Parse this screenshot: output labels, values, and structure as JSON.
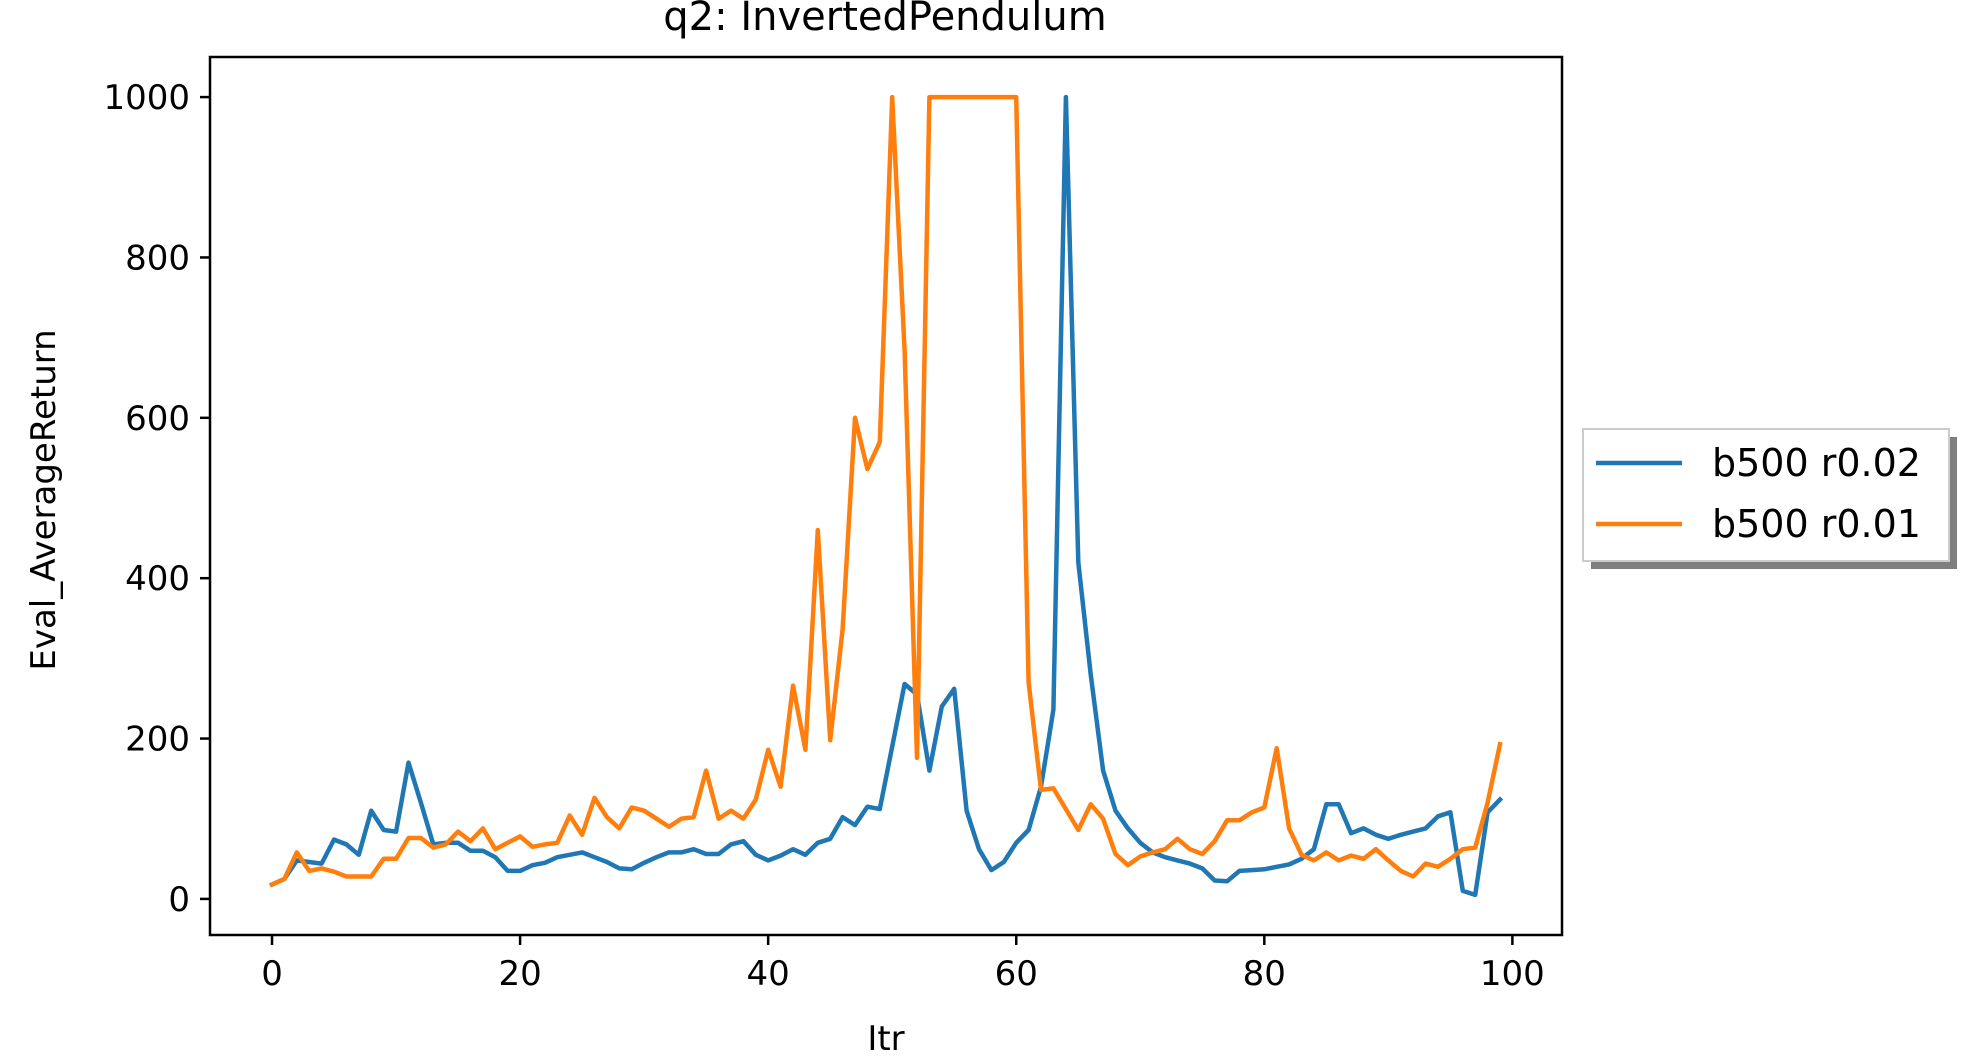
{
  "chart_data": {
    "type": "line",
    "title": "q2: InvertedPendulum",
    "xlabel": "Itr",
    "ylabel": "Eval_AverageReturn",
    "xlim": [
      -5,
      104
    ],
    "ylim": [
      -45,
      1050
    ],
    "xticks": [
      0,
      20,
      40,
      60,
      80,
      100
    ],
    "yticks": [
      0,
      200,
      400,
      600,
      800,
      1000
    ],
    "grid": false,
    "legend_position": "outside right",
    "x": [
      0,
      1,
      2,
      3,
      4,
      5,
      6,
      7,
      8,
      9,
      10,
      11,
      12,
      13,
      14,
      15,
      16,
      17,
      18,
      19,
      20,
      21,
      22,
      23,
      24,
      25,
      26,
      27,
      28,
      29,
      30,
      31,
      32,
      33,
      34,
      35,
      36,
      37,
      38,
      39,
      40,
      41,
      42,
      43,
      44,
      45,
      46,
      47,
      48,
      49,
      50,
      51,
      52,
      53,
      54,
      55,
      56,
      57,
      58,
      59,
      60,
      61,
      62,
      63,
      64,
      65,
      66,
      67,
      68,
      69,
      70,
      71,
      72,
      73,
      74,
      75,
      76,
      77,
      78,
      79,
      80,
      81,
      82,
      83,
      84,
      85,
      86,
      87,
      88,
      89,
      90,
      91,
      92,
      93,
      94,
      95,
      96,
      97,
      98,
      99
    ],
    "series": [
      {
        "name": "b500 r0.02",
        "color": "#1f77b4",
        "values": [
          18,
          25,
          48,
          46,
          44,
          74,
          68,
          55,
          110,
          86,
          84,
          170,
          120,
          68,
          70,
          70,
          60,
          60,
          52,
          35,
          35,
          42,
          45,
          52,
          55,
          58,
          52,
          46,
          38,
          37,
          45,
          52,
          58,
          58,
          62,
          56,
          56,
          68,
          72,
          55,
          48,
          54,
          62,
          55,
          70,
          75,
          102,
          92,
          115,
          112,
          190,
          268,
          255,
          160,
          240,
          262,
          110,
          62,
          36,
          46,
          70,
          86,
          140,
          236,
          1000,
          420,
          280,
          160,
          110,
          88,
          70,
          58,
          52,
          48,
          44,
          38,
          23,
          22,
          35,
          36,
          37,
          40,
          43,
          50,
          62,
          118,
          118,
          82,
          88,
          80,
          75,
          80,
          84,
          88,
          103,
          108,
          10,
          5,
          108,
          124
        ]
      },
      {
        "name": "b500 r0.01",
        "color": "#ff7f0e",
        "values": [
          18,
          25,
          58,
          35,
          38,
          34,
          28,
          28,
          28,
          50,
          50,
          76,
          76,
          64,
          68,
          84,
          72,
          88,
          62,
          70,
          78,
          65,
          68,
          70,
          104,
          80,
          126,
          102,
          88,
          114,
          110,
          100,
          90,
          100,
          102,
          160,
          100,
          110,
          100,
          124,
          186,
          140,
          266,
          186,
          460,
          198,
          336,
          600,
          536,
          570,
          1000,
          684,
          176,
          1000,
          1000,
          1000,
          1000,
          1000,
          1000,
          1000,
          1000,
          270,
          136,
          138,
          112,
          86,
          118,
          100,
          56,
          42,
          53,
          58,
          62,
          75,
          62,
          56,
          72,
          98,
          98,
          108,
          114,
          188,
          88,
          55,
          48,
          58,
          48,
          54,
          50,
          62,
          48,
          35,
          28,
          44,
          40,
          50,
          62,
          64,
          120,
          193
        ]
      }
    ]
  }
}
